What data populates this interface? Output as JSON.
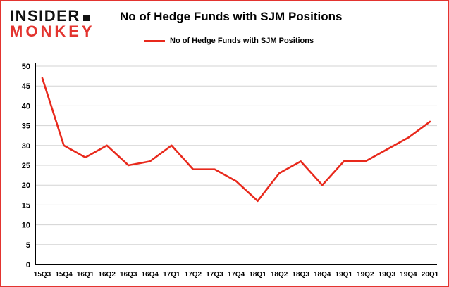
{
  "page": {
    "logo_line1": "INSIDER",
    "logo_line2": "MONKEY",
    "title": "No of Hedge Funds with SJM Positions",
    "legend_label": "No of Hedge Funds with SJM Positions"
  },
  "colors": {
    "accent_red": "#e3342f",
    "line": "#e8291c",
    "grid": "#d3d3d3",
    "axis": "#000000",
    "text": "#000000",
    "background": "#ffffff"
  },
  "chart_data": {
    "type": "line",
    "title": "No of Hedge Funds with SJM Positions",
    "legend": [
      "No of Hedge Funds with SJM Positions"
    ],
    "legend_position": "top",
    "categories": [
      "15Q3",
      "15Q4",
      "16Q1",
      "16Q2",
      "16Q3",
      "16Q4",
      "17Q1",
      "17Q2",
      "17Q3",
      "17Q4",
      "18Q1",
      "18Q2",
      "18Q3",
      "18Q4",
      "19Q1",
      "19Q2",
      "19Q3",
      "19Q4",
      "20Q1"
    ],
    "values": [
      47,
      30,
      27,
      30,
      25,
      26,
      30,
      24,
      24,
      21,
      16,
      23,
      26,
      20,
      26,
      26,
      29,
      32,
      36
    ],
    "xlabel": "",
    "ylabel": "",
    "ylim": [
      0,
      50
    ],
    "ytick_step": 5,
    "yticks": [
      0,
      5,
      10,
      15,
      20,
      25,
      30,
      35,
      40,
      45,
      50
    ],
    "grid": "horizontal"
  }
}
